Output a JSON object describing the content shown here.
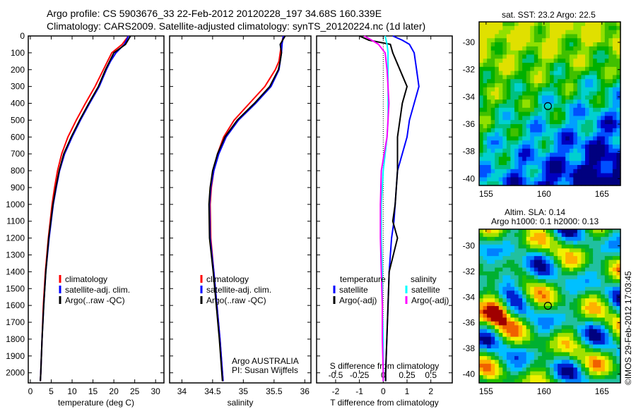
{
  "header": {
    "line1": "Argo profile: CS 5903676_33 22-Feb-2012 20120228_197 34.68S 160.339E",
    "line2": "Climatology: CARS2009. Satellite-adjusted climatology: synTS_20120224.nc (1d later)"
  },
  "colors": {
    "climatology": "#ff0000",
    "satellite": "#0000ff",
    "argo": "#000000",
    "sat_sal": "#00ffff",
    "argo_sal": "#ff00ff"
  },
  "chart_data": [
    {
      "type": "line",
      "title": "",
      "xlabel": "temperature (deg C)",
      "ylabel": "",
      "xlim": [
        -0.5,
        32
      ],
      "ylim": [
        2060,
        0
      ],
      "xticks": [
        "0",
        "5",
        "10",
        "15",
        "20",
        "25",
        "30"
      ],
      "xtick_values": [
        0,
        5,
        10,
        15,
        20,
        25,
        30
      ],
      "yticks": [
        "0",
        "100",
        "200",
        "300",
        "400",
        "500",
        "600",
        "700",
        "800",
        "900",
        "1000",
        "1100",
        "1200",
        "1300",
        "1400",
        "1500",
        "1600",
        "1700",
        "1800",
        "1900",
        "2000"
      ],
      "depth": [
        0,
        50,
        100,
        150,
        200,
        300,
        400,
        500,
        600,
        700,
        800,
        900,
        1000,
        1200,
        1400,
        1600,
        1800,
        2000,
        2050
      ],
      "series": [
        {
          "name": "climatology",
          "color": "#ff0000",
          "values": [
            23.5,
            22,
            19.5,
            18.5,
            17.5,
            15.5,
            13.2,
            11,
            9,
            7.5,
            6.5,
            5.8,
            5.2,
            4.3,
            3.6,
            3.1,
            2.8,
            2.5,
            2.4
          ]
        },
        {
          "name": "satellite-adj. clim.",
          "color": "#0000ff",
          "values": [
            23.5,
            22.5,
            20.5,
            19.2,
            18.2,
            16.5,
            14.2,
            12,
            10,
            8.2,
            7,
            6.2,
            5.5,
            4.5,
            3.7,
            3.2,
            2.8,
            2.5,
            2.4
          ]
        },
        {
          "name": "Argo(..raw -QC)",
          "color": "#000000",
          "values": [
            24,
            22.8,
            20,
            19,
            18,
            16.3,
            14,
            11.8,
            9.8,
            8,
            6.9,
            6.1,
            5.4,
            4.4,
            3.7,
            3.2,
            2.8,
            2.5,
            2.4
          ]
        }
      ],
      "legend": "center-left"
    },
    {
      "type": "line",
      "xlabel": "salinity",
      "xlim": [
        33.8,
        36.1
      ],
      "ylim": [
        2060,
        0
      ],
      "xticks": [
        "34",
        "34.5",
        "35",
        "35.5",
        "36"
      ],
      "xtick_values": [
        34,
        34.5,
        35,
        35.5,
        36
      ],
      "depth": [
        0,
        50,
        100,
        150,
        200,
        300,
        400,
        500,
        600,
        700,
        800,
        900,
        1000,
        1200,
        1400,
        1600,
        1800,
        2000,
        2050
      ],
      "series": [
        {
          "name": "climatology",
          "color": "#ff0000",
          "values": [
            35.65,
            35.62,
            35.6,
            35.58,
            35.52,
            35.35,
            35.1,
            34.85,
            34.68,
            34.58,
            34.52,
            34.48,
            34.46,
            34.47,
            34.52,
            34.57,
            34.62,
            34.66,
            34.67
          ]
        },
        {
          "name": "satellite-adj. clim.",
          "color": "#0000ff",
          "values": [
            35.65,
            35.63,
            35.62,
            35.6,
            35.58,
            35.45,
            35.2,
            34.92,
            34.72,
            34.6,
            34.52,
            34.47,
            34.45,
            34.46,
            34.52,
            34.57,
            34.62,
            34.66,
            34.67
          ]
        },
        {
          "name": "Argo(..raw -QC)",
          "color": "#000000",
          "values": [
            35.68,
            35.6,
            35.62,
            35.6,
            35.57,
            35.43,
            35.18,
            34.9,
            34.7,
            34.58,
            34.5,
            34.46,
            34.44,
            34.45,
            34.51,
            34.56,
            34.61,
            34.65,
            34.66
          ]
        }
      ],
      "annotation": [
        "Argo AUSTRALIA",
        "PI: Susan Wijffels"
      ],
      "legend": "center-left"
    },
    {
      "type": "line",
      "xlabel": "T difference from climatology",
      "x2label": "S difference from climatology",
      "xlim": [
        -2.8,
        2.9
      ],
      "ylim": [
        2060,
        0
      ],
      "xticks": [
        "-2",
        "-1",
        "0",
        "1",
        "2"
      ],
      "xtick_values": [
        -2,
        -1,
        0,
        1,
        2
      ],
      "x2ticks": [
        "-0.5",
        "-0.25",
        "0",
        "0.25",
        "0.5"
      ],
      "x2tick_values": [
        -0.5,
        -0.25,
        0,
        0.25,
        0.5
      ],
      "depth": [
        0,
        25,
        50,
        100,
        200,
        300,
        400,
        500,
        600,
        800,
        1000,
        1100,
        1200,
        1400,
        1600,
        1800,
        2000,
        2050
      ],
      "legend_headers": [
        "temperature",
        "salinity"
      ],
      "series": [
        {
          "name": "satellite",
          "group": "temperature",
          "color": "#0000ff",
          "values": [
            0.4,
            0.8,
            1.1,
            1.3,
            1.4,
            1.5,
            1.3,
            1.1,
            1.0,
            0.6,
            0.5,
            0.45,
            0.35,
            0.25,
            0.2,
            0.15,
            0.1,
            0.1
          ]
        },
        {
          "name": "Argo(-adj)",
          "group": "temperature",
          "color": "#000000",
          "values": [
            -1.0,
            -0.6,
            0.3,
            0.4,
            0.7,
            1.0,
            0.8,
            0.7,
            0.6,
            0.6,
            0.5,
            0.4,
            0.6,
            0.25,
            0.2,
            0.15,
            0.1,
            0.1
          ]
        },
        {
          "name": "satellite",
          "group": "salinity",
          "color": "#00ffff",
          "values": [
            0.02,
            0.03,
            0.04,
            0.05,
            0.05,
            0.05,
            0.05,
            0.05,
            0.04,
            0.0,
            -0.02,
            -0.02,
            -0.02,
            -0.01,
            -0.01,
            0,
            0,
            0
          ]
        },
        {
          "name": "Argo(-adj)",
          "group": "salinity",
          "color": "#ff00ff",
          "values": [
            -0.2,
            -0.12,
            -0.05,
            0.02,
            0.04,
            0.05,
            0.06,
            0.05,
            0.04,
            -0.02,
            -0.03,
            -0.03,
            -0.03,
            -0.02,
            -0.01,
            -0.01,
            0,
            0
          ]
        }
      ]
    }
  ],
  "maps": {
    "sst": {
      "title": "sat. SST: 23.2 Argo: 22.5",
      "lat_ticks": [
        "-30",
        "-32",
        "-34",
        "-36",
        "-38",
        "-40"
      ],
      "lon_ticks": [
        "155",
        "160",
        "165"
      ],
      "argo_lon": 160.339,
      "argo_lat": -34.68
    },
    "sla": {
      "title1": "Altim. SLA: 0.14",
      "title2": "Argo h1000: 0.1 h2000: 0.13",
      "lat_ticks": [
        "-30",
        "-32",
        "-34",
        "-36",
        "-38",
        "-40"
      ],
      "lon_ticks": [
        "155",
        "160",
        "165"
      ],
      "argo_lon": 160.339,
      "argo_lat": -34.68
    }
  },
  "footer": {
    "credit": "©IMOS 29-Feb-2012 17:03:45"
  }
}
